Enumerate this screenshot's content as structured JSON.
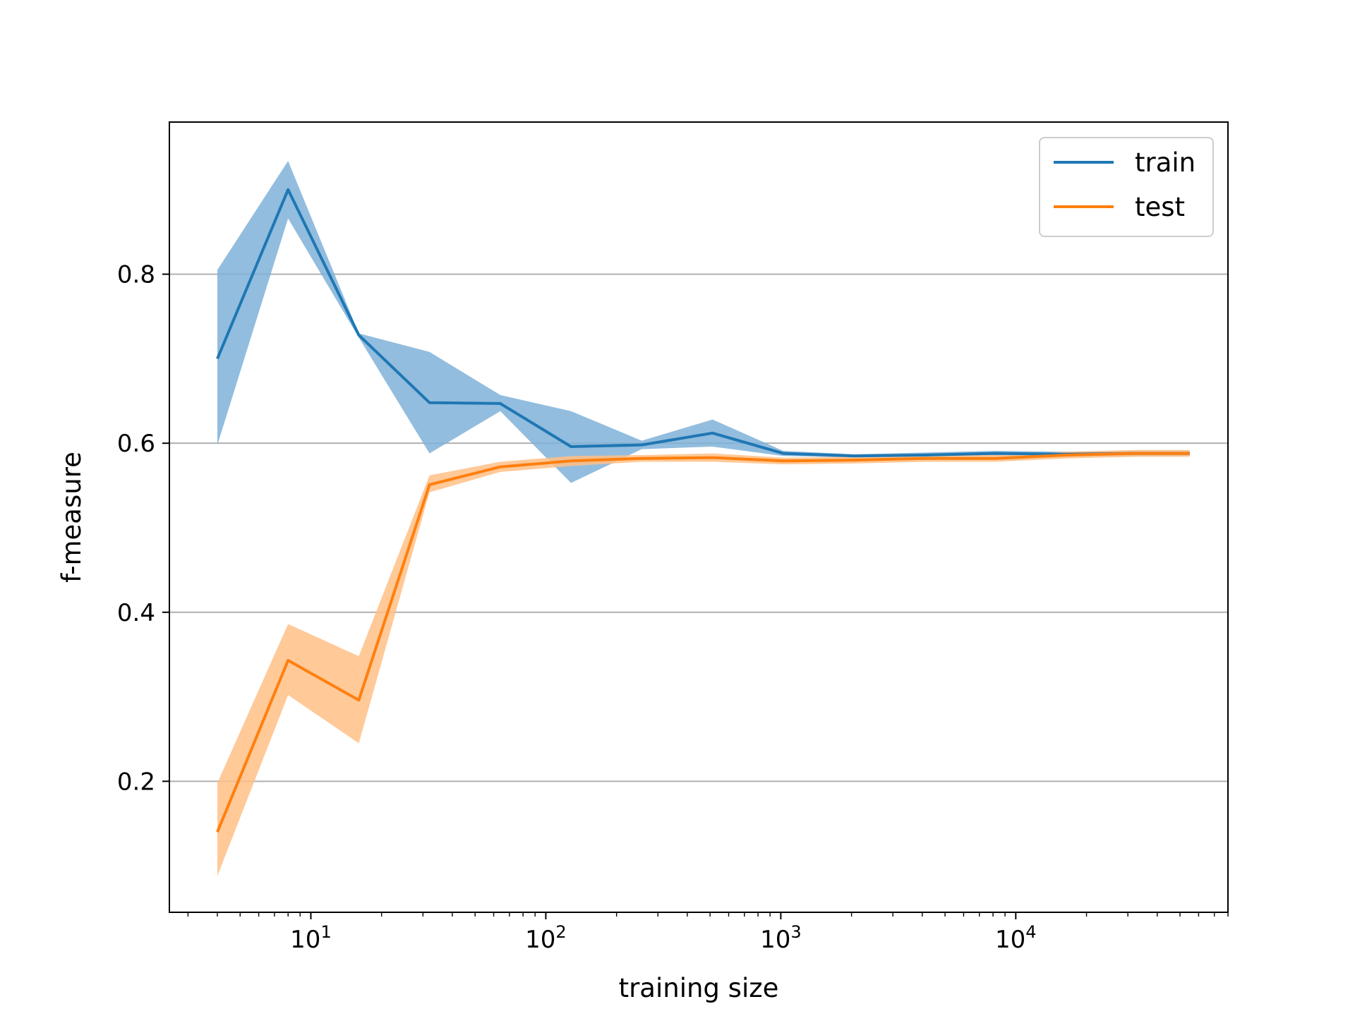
{
  "chart_data": {
    "type": "line",
    "xscale": "log",
    "xlim": [
      2.5,
      80000
    ],
    "ylim": [
      0.045,
      0.98
    ],
    "xlabel": "training size",
    "ylabel": "f-measure",
    "grid": "y",
    "legend_position": "top-right",
    "x_ticks": [
      {
        "value": 10,
        "base": "10",
        "exp": "1"
      },
      {
        "value": 100,
        "base": "10",
        "exp": "2"
      },
      {
        "value": 1000,
        "base": "10",
        "exp": "3"
      },
      {
        "value": 10000,
        "base": "10",
        "exp": "4"
      }
    ],
    "y_ticks": [
      {
        "value": 0.2,
        "label": "0.2"
      },
      {
        "value": 0.4,
        "label": "0.4"
      },
      {
        "value": 0.6,
        "label": "0.6"
      },
      {
        "value": 0.8,
        "label": "0.8"
      }
    ],
    "x": [
      4,
      8,
      16,
      32,
      64,
      128,
      256,
      512,
      1024,
      2048,
      4096,
      8192,
      16384,
      32768,
      55000
    ],
    "series": [
      {
        "name": "train",
        "color": "#1f77b4",
        "band_color": "#7fb1d8",
        "values": [
          0.7,
          0.9,
          0.728,
          0.648,
          0.647,
          0.596,
          0.598,
          0.612,
          0.588,
          0.585,
          0.586,
          0.588,
          0.587,
          0.588,
          0.588
        ],
        "lower": [
          0.598,
          0.866,
          0.725,
          0.588,
          0.638,
          0.553,
          0.593,
          0.596,
          0.585,
          0.583,
          0.584,
          0.585,
          0.584,
          0.585,
          0.585
        ],
        "upper": [
          0.805,
          0.934,
          0.73,
          0.708,
          0.657,
          0.638,
          0.603,
          0.628,
          0.591,
          0.587,
          0.589,
          0.591,
          0.59,
          0.591,
          0.591
        ]
      },
      {
        "name": "test",
        "color": "#ff7f0e",
        "band_color": "#ffbf86",
        "values": [
          0.14,
          0.343,
          0.296,
          0.551,
          0.572,
          0.579,
          0.582,
          0.583,
          0.579,
          0.58,
          0.582,
          0.582,
          0.586,
          0.588,
          0.588
        ],
        "lower": [
          0.088,
          0.302,
          0.245,
          0.542,
          0.566,
          0.573,
          0.578,
          0.578,
          0.575,
          0.576,
          0.578,
          0.578,
          0.582,
          0.584,
          0.584
        ],
        "upper": [
          0.198,
          0.386,
          0.348,
          0.562,
          0.578,
          0.585,
          0.586,
          0.588,
          0.583,
          0.584,
          0.586,
          0.586,
          0.59,
          0.592,
          0.592
        ]
      }
    ]
  }
}
